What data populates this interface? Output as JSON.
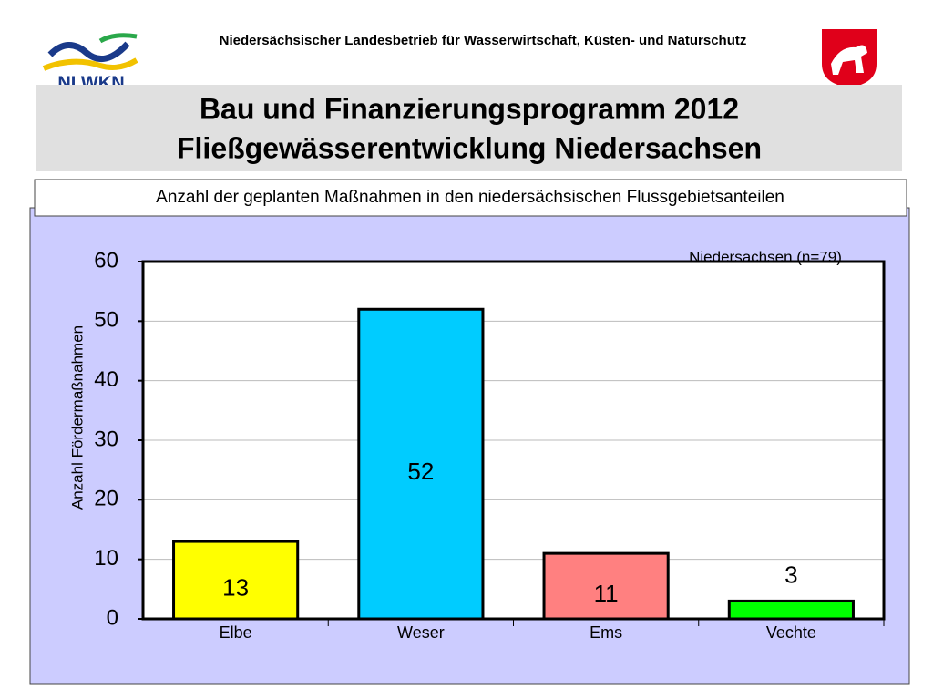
{
  "header": {
    "organization": "Niedersächsischer Landesbetrieb für Wasserwirtschaft, Küsten- und Naturschutz",
    "logo": "NLWKN"
  },
  "chart_data": {
    "type": "bar",
    "title": [
      "Bau und Finanzierungsprogramm 2012",
      "Fließgewässerentwicklung Niedersachsen"
    ],
    "subtitle": "Anzahl der geplanten Maßnahmen in den niedersächsischen Flussgebietsanteilen",
    "annotation": "Niedersachsen (n=79)",
    "y_label": "Anzahl Fördermaßnahmen",
    "categories": [
      "Elbe",
      "Weser",
      "Ems",
      "Vechte"
    ],
    "values": [
      13,
      52,
      11,
      3
    ],
    "colors": [
      "#ffff00",
      "#00ccff",
      "#ff8080",
      "#00ff00"
    ],
    "ylim": [
      0,
      60
    ],
    "yticks": [
      0,
      10,
      20,
      30,
      40,
      50,
      60
    ],
    "grid": true
  }
}
